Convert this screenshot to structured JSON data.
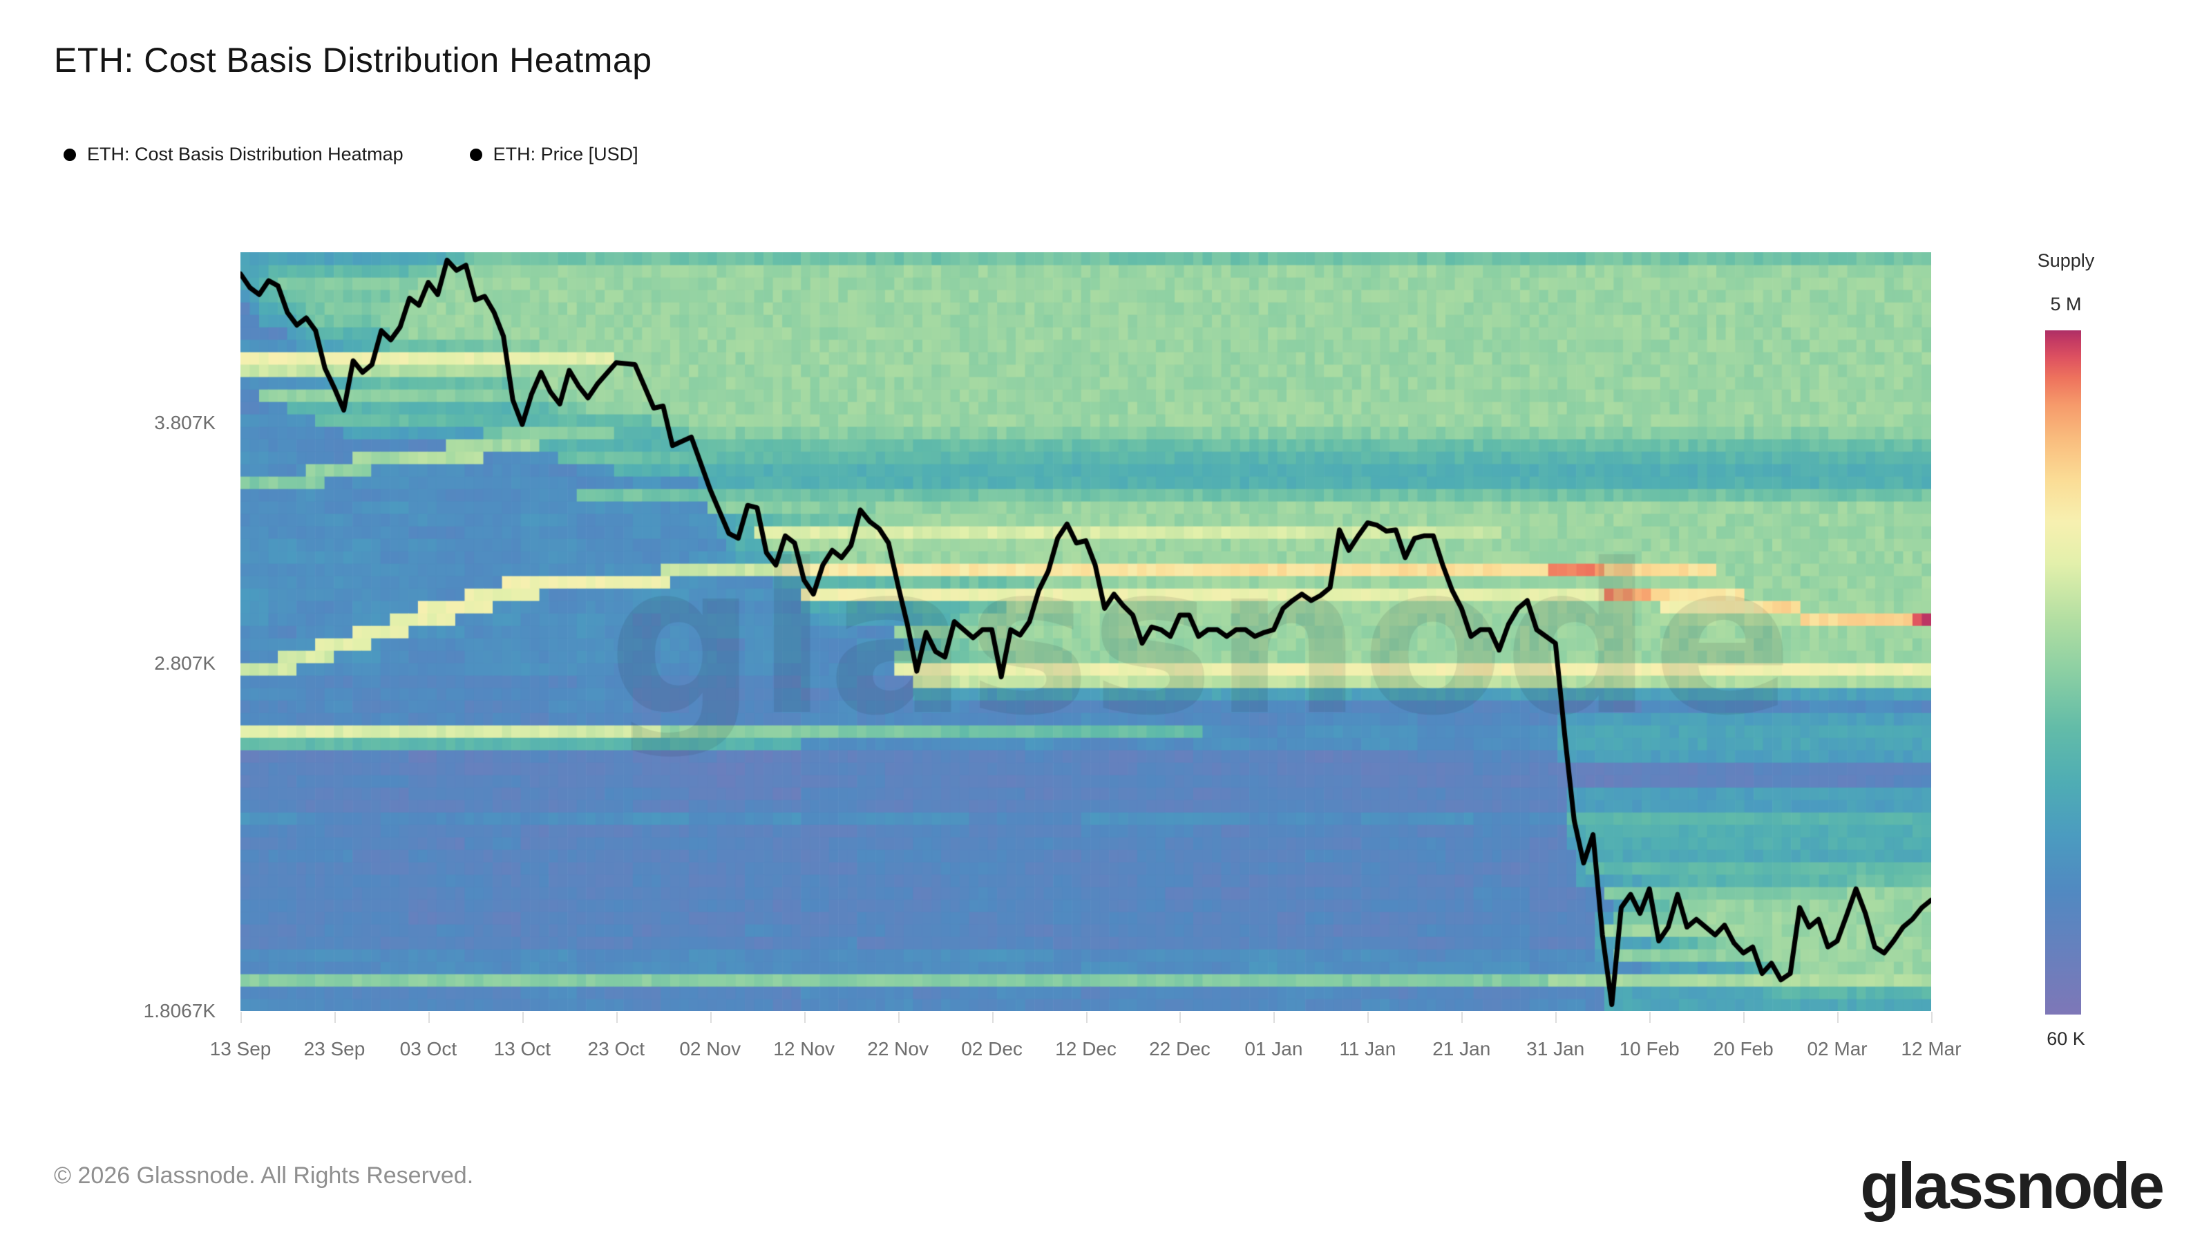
{
  "header": {
    "title": "ETH: Cost Basis Distribution Heatmap"
  },
  "legend": [
    {
      "label": "ETH: Cost Basis Distribution Heatmap",
      "marker": "filled-circle",
      "marker_color": "#000000"
    },
    {
      "label": "ETH: Price [USD]",
      "marker": "filled-circle",
      "marker_color": "#000000"
    }
  ],
  "watermark": {
    "text": "glassnode"
  },
  "footer": {
    "copyright": "© 2026 Glassnode. All Rights Reserved.",
    "logo_text": "glassnode"
  },
  "chart_data": {
    "type": "heatmap",
    "title": "ETH: Cost Basis Distribution Heatmap",
    "grid": false,
    "legend_position": "top-left",
    "x_axis": {
      "tick_labels": [
        "13 Sep",
        "23 Sep",
        "03 Oct",
        "13 Oct",
        "23 Oct",
        "02 Nov",
        "12 Nov",
        "22 Nov",
        "02 Dec",
        "12 Dec",
        "22 Dec",
        "01 Jan",
        "11 Jan",
        "21 Jan",
        "31 Jan",
        "10 Feb",
        "20 Feb",
        "02 Mar",
        "12 Mar"
      ],
      "tick_days": [
        0,
        10,
        20,
        30,
        40,
        50,
        60,
        70,
        80,
        90,
        100,
        110,
        120,
        130,
        140,
        150,
        160,
        170,
        180
      ],
      "days_total": 181
    },
    "y_axis": {
      "scale": "log",
      "unit": "USD",
      "ticks": [
        {
          "label": "3.807K",
          "price": 3807
        },
        {
          "label": "2.807K",
          "price": 2807
        },
        {
          "label": "1.8067K",
          "price": 1806.7
        }
      ],
      "price_bottom": 1807,
      "price_top": 4727,
      "rows": 61
    },
    "colorbar": {
      "title": "Supply",
      "top_label": "5 M",
      "bottom_label": "60 K",
      "stops": [
        [
          0.0,
          "#7e77b7"
        ],
        [
          0.1,
          "#6581be"
        ],
        [
          0.18,
          "#5189c1"
        ],
        [
          0.26,
          "#4b9bc0"
        ],
        [
          0.34,
          "#4fadb4"
        ],
        [
          0.42,
          "#63bca8"
        ],
        [
          0.5,
          "#8bcfa3"
        ],
        [
          0.58,
          "#b4dfa2"
        ],
        [
          0.66,
          "#e3f0ab"
        ],
        [
          0.72,
          "#f7f0b0"
        ],
        [
          0.78,
          "#fbdd96"
        ],
        [
          0.84,
          "#f9bd7e"
        ],
        [
          0.89,
          "#f69b6b"
        ],
        [
          0.93,
          "#ee735d"
        ],
        [
          0.96,
          "#de5260"
        ],
        [
          0.985,
          "#c43a63"
        ],
        [
          1.0,
          "#ad2f66"
        ]
      ]
    },
    "price_series": {
      "name": "ETH: Price [USD]",
      "color": "#000000",
      "points": [
        [
          0,
          4600
        ],
        [
          1,
          4520
        ],
        [
          2,
          4480
        ],
        [
          3,
          4560
        ],
        [
          4,
          4530
        ],
        [
          5,
          4380
        ],
        [
          6,
          4310
        ],
        [
          7,
          4350
        ],
        [
          8,
          4280
        ],
        [
          9,
          4080
        ],
        [
          10,
          3980
        ],
        [
          11,
          3870
        ],
        [
          12,
          4120
        ],
        [
          13,
          4060
        ],
        [
          14,
          4100
        ],
        [
          15,
          4280
        ],
        [
          16,
          4230
        ],
        [
          17,
          4300
        ],
        [
          18,
          4460
        ],
        [
          19,
          4420
        ],
        [
          20,
          4550
        ],
        [
          21,
          4480
        ],
        [
          22,
          4680
        ],
        [
          23,
          4620
        ],
        [
          24,
          4650
        ],
        [
          25,
          4450
        ],
        [
          26,
          4470
        ],
        [
          27,
          4380
        ],
        [
          28,
          4250
        ],
        [
          29,
          3920
        ],
        [
          30,
          3800
        ],
        [
          31,
          3950
        ],
        [
          32,
          4060
        ],
        [
          33,
          3960
        ],
        [
          34,
          3900
        ],
        [
          35,
          4070
        ],
        [
          36,
          3990
        ],
        [
          37,
          3930
        ],
        [
          38,
          4000
        ],
        [
          40,
          4110
        ],
        [
          42,
          4100
        ],
        [
          43,
          3990
        ],
        [
          44,
          3880
        ],
        [
          45,
          3890
        ],
        [
          46,
          3700
        ],
        [
          48,
          3740
        ],
        [
          50,
          3500
        ],
        [
          52,
          3310
        ],
        [
          53,
          3290
        ],
        [
          54,
          3430
        ],
        [
          55,
          3420
        ],
        [
          56,
          3230
        ],
        [
          57,
          3180
        ],
        [
          58,
          3300
        ],
        [
          59,
          3270
        ],
        [
          60,
          3120
        ],
        [
          61,
          3065
        ],
        [
          62,
          3180
        ],
        [
          63,
          3240
        ],
        [
          64,
          3210
        ],
        [
          65,
          3260
        ],
        [
          66,
          3410
        ],
        [
          67,
          3360
        ],
        [
          68,
          3330
        ],
        [
          69,
          3270
        ],
        [
          70,
          3100
        ],
        [
          71,
          2950
        ],
        [
          72,
          2780
        ],
        [
          73,
          2920
        ],
        [
          74,
          2850
        ],
        [
          75,
          2830
        ],
        [
          76,
          2960
        ],
        [
          77,
          2930
        ],
        [
          78,
          2900
        ],
        [
          79,
          2930
        ],
        [
          80,
          2930
        ],
        [
          81,
          2760
        ],
        [
          82,
          2930
        ],
        [
          83,
          2910
        ],
        [
          84,
          2960
        ],
        [
          85,
          3080
        ],
        [
          86,
          3155
        ],
        [
          87,
          3290
        ],
        [
          88,
          3350
        ],
        [
          89,
          3270
        ],
        [
          90,
          3280
        ],
        [
          91,
          3180
        ],
        [
          92,
          3010
        ],
        [
          93,
          3065
        ],
        [
          94,
          3020
        ],
        [
          95,
          2985
        ],
        [
          96,
          2880
        ],
        [
          97,
          2940
        ],
        [
          98,
          2930
        ],
        [
          99,
          2905
        ],
        [
          100,
          2985
        ],
        [
          101,
          2985
        ],
        [
          102,
          2905
        ],
        [
          103,
          2930
        ],
        [
          104,
          2930
        ],
        [
          105,
          2905
        ],
        [
          106,
          2930
        ],
        [
          107,
          2930
        ],
        [
          108,
          2905
        ],
        [
          109,
          2920
        ],
        [
          110,
          2930
        ],
        [
          111,
          3010
        ],
        [
          112,
          3040
        ],
        [
          113,
          3065
        ],
        [
          114,
          3040
        ],
        [
          115,
          3060
        ],
        [
          116,
          3090
        ],
        [
          117,
          3325
        ],
        [
          118,
          3240
        ],
        [
          119,
          3300
        ],
        [
          120,
          3355
        ],
        [
          121,
          3345
        ],
        [
          122,
          3320
        ],
        [
          123,
          3325
        ],
        [
          124,
          3210
        ],
        [
          125,
          3290
        ],
        [
          126,
          3300
        ],
        [
          127,
          3300
        ],
        [
          128,
          3180
        ],
        [
          129,
          3080
        ],
        [
          130,
          3010
        ],
        [
          131,
          2905
        ],
        [
          132,
          2930
        ],
        [
          133,
          2930
        ],
        [
          134,
          2855
        ],
        [
          135,
          2950
        ],
        [
          136,
          3010
        ],
        [
          137,
          3040
        ],
        [
          138,
          2930
        ],
        [
          139,
          2905
        ],
        [
          140,
          2880
        ],
        [
          141,
          2560
        ],
        [
          142,
          2300
        ],
        [
          143,
          2180
        ],
        [
          144,
          2260
        ],
        [
          145,
          1990
        ],
        [
          146,
          1822
        ],
        [
          147,
          2060
        ],
        [
          148,
          2095
        ],
        [
          149,
          2045
        ],
        [
          150,
          2110
        ],
        [
          151,
          1975
        ],
        [
          152,
          2010
        ],
        [
          153,
          2095
        ],
        [
          154,
          2010
        ],
        [
          155,
          2030
        ],
        [
          156,
          2010
        ],
        [
          157,
          1990
        ],
        [
          158,
          2015
        ],
        [
          159,
          1970
        ],
        [
          160,
          1945
        ],
        [
          161,
          1960
        ],
        [
          162,
          1895
        ],
        [
          163,
          1920
        ],
        [
          164,
          1880
        ],
        [
          165,
          1895
        ],
        [
          166,
          2060
        ],
        [
          167,
          2010
        ],
        [
          168,
          2030
        ],
        [
          169,
          1960
        ],
        [
          170,
          1975
        ],
        [
          171,
          2040
        ],
        [
          172,
          2110
        ],
        [
          173,
          2045
        ],
        [
          174,
          1960
        ],
        [
          175,
          1945
        ],
        [
          176,
          1975
        ],
        [
          177,
          2010
        ],
        [
          178,
          2030
        ],
        [
          179,
          2060
        ],
        [
          180,
          2080
        ]
      ]
    },
    "supply_bands": [
      [
        4150,
        0,
        40,
        0.7,
        0.66
      ],
      [
        4150,
        40,
        100,
        0.52,
        0.3
      ],
      [
        4100,
        0,
        30,
        0.62,
        0.55
      ],
      [
        4060,
        0,
        45,
        0.6,
        0.5
      ],
      [
        4060,
        45,
        115,
        0.42,
        0.26
      ],
      [
        3960,
        2,
        60,
        0.52,
        0.46
      ],
      [
        3960,
        60,
        178,
        0.38,
        0.33
      ],
      [
        3890,
        5,
        40,
        0.4,
        0.36
      ],
      [
        3840,
        8,
        46,
        0.44,
        0.36
      ],
      [
        3760,
        26,
        60,
        0.42,
        0.36
      ],
      [
        3700,
        30,
        90,
        0.38,
        0.32
      ],
      [
        3640,
        34,
        120,
        0.44,
        0.34
      ],
      [
        3600,
        40,
        181,
        0.36,
        0.3
      ],
      [
        3480,
        36,
        140,
        0.46,
        0.38
      ],
      [
        3480,
        140,
        181,
        0.34,
        0.3
      ],
      [
        3410,
        50,
        140,
        0.5,
        0.42
      ],
      [
        3520,
        0,
        5,
        0.48,
        0.48
      ],
      [
        3555,
        3,
        9,
        0.5,
        0.5
      ],
      [
        3590,
        7,
        14,
        0.52,
        0.52
      ],
      [
        3625,
        12,
        20,
        0.55,
        0.55
      ],
      [
        3665,
        17,
        26,
        0.58,
        0.58
      ],
      [
        3700,
        22,
        32,
        0.55,
        0.55
      ],
      [
        3745,
        28,
        40,
        0.5,
        0.5
      ],
      [
        2780,
        0,
        6,
        0.62,
        0.62
      ],
      [
        2830,
        4,
        10,
        0.64,
        0.64
      ],
      [
        2880,
        8,
        14,
        0.66,
        0.66
      ],
      [
        2925,
        12,
        18,
        0.68,
        0.68
      ],
      [
        2970,
        16,
        23,
        0.68,
        0.68
      ],
      [
        3010,
        19,
        27,
        0.7,
        0.7
      ],
      [
        3055,
        24,
        32,
        0.68,
        0.68
      ],
      [
        3100,
        28,
        37,
        0.7,
        0.7
      ],
      [
        3130,
        34,
        46,
        0.7,
        0.7
      ],
      [
        3160,
        45,
        58,
        0.62,
        0.62
      ],
      [
        3330,
        55,
        135,
        0.66,
        0.62
      ],
      [
        3330,
        135,
        143,
        0.5,
        0.4
      ],
      [
        3270,
        56,
        140,
        0.56,
        0.48
      ],
      [
        3150,
        58,
        140,
        0.74,
        0.78
      ],
      [
        3150,
        140,
        146,
        0.93,
        0.9
      ],
      [
        3150,
        146,
        158,
        0.8,
        0.76
      ],
      [
        3150,
        158,
        181,
        0.4,
        0.34
      ],
      [
        3085,
        60,
        146,
        0.7,
        0.66
      ],
      [
        3085,
        146,
        151,
        0.9,
        0.86
      ],
      [
        3085,
        151,
        161,
        0.78,
        0.74
      ],
      [
        3085,
        161,
        181,
        0.4,
        0.36
      ],
      [
        3030,
        82,
        152,
        0.56,
        0.52
      ],
      [
        3030,
        152,
        163,
        0.7,
        0.72
      ],
      [
        3030,
        163,
        167,
        0.8,
        0.78
      ],
      [
        3030,
        167,
        181,
        0.44,
        0.4
      ],
      [
        2975,
        96,
        150,
        0.5,
        0.48
      ],
      [
        2975,
        150,
        167,
        0.56,
        0.58
      ],
      [
        2975,
        167,
        179,
        0.78,
        0.8
      ],
      [
        2975,
        179,
        181,
        0.97,
        0.97
      ],
      [
        2905,
        70,
        181,
        0.52,
        0.46
      ],
      [
        2850,
        70,
        181,
        0.46,
        0.42
      ],
      [
        2800,
        70,
        110,
        0.68,
        0.7
      ],
      [
        2800,
        110,
        181,
        0.72,
        0.7
      ],
      [
        2760,
        72,
        181,
        0.62,
        0.56
      ],
      [
        2560,
        0,
        45,
        0.66,
        0.62
      ],
      [
        2560,
        45,
        75,
        0.52,
        0.46
      ],
      [
        2560,
        75,
        103,
        0.44,
        0.42
      ],
      [
        2520,
        0,
        60,
        0.42,
        0.36
      ],
      [
        2310,
        142,
        181,
        0.4,
        0.38
      ],
      [
        2150,
        144,
        181,
        0.4,
        0.42
      ],
      [
        2090,
        146,
        181,
        0.48,
        0.46
      ],
      [
        2040,
        147,
        181,
        0.46,
        0.44
      ],
      [
        1990,
        146,
        181,
        0.54,
        0.5
      ],
      [
        1940,
        147,
        181,
        0.5,
        0.52
      ],
      [
        1890,
        0,
        140,
        0.5,
        0.48
      ],
      [
        1890,
        140,
        181,
        0.55,
        0.58
      ]
    ],
    "low_supply_zones": [
      [
        4220,
        4700,
        0.15
      ],
      [
        3680,
        3780,
        0.17
      ],
      [
        2580,
        2745,
        0.17
      ],
      [
        2330,
        2500,
        0.13
      ],
      [
        1960,
        2290,
        0.15
      ],
      [
        1808,
        1875,
        0.17
      ]
    ],
    "background": {
      "base_t": 0.205,
      "noise_amp": 0.05
    }
  }
}
